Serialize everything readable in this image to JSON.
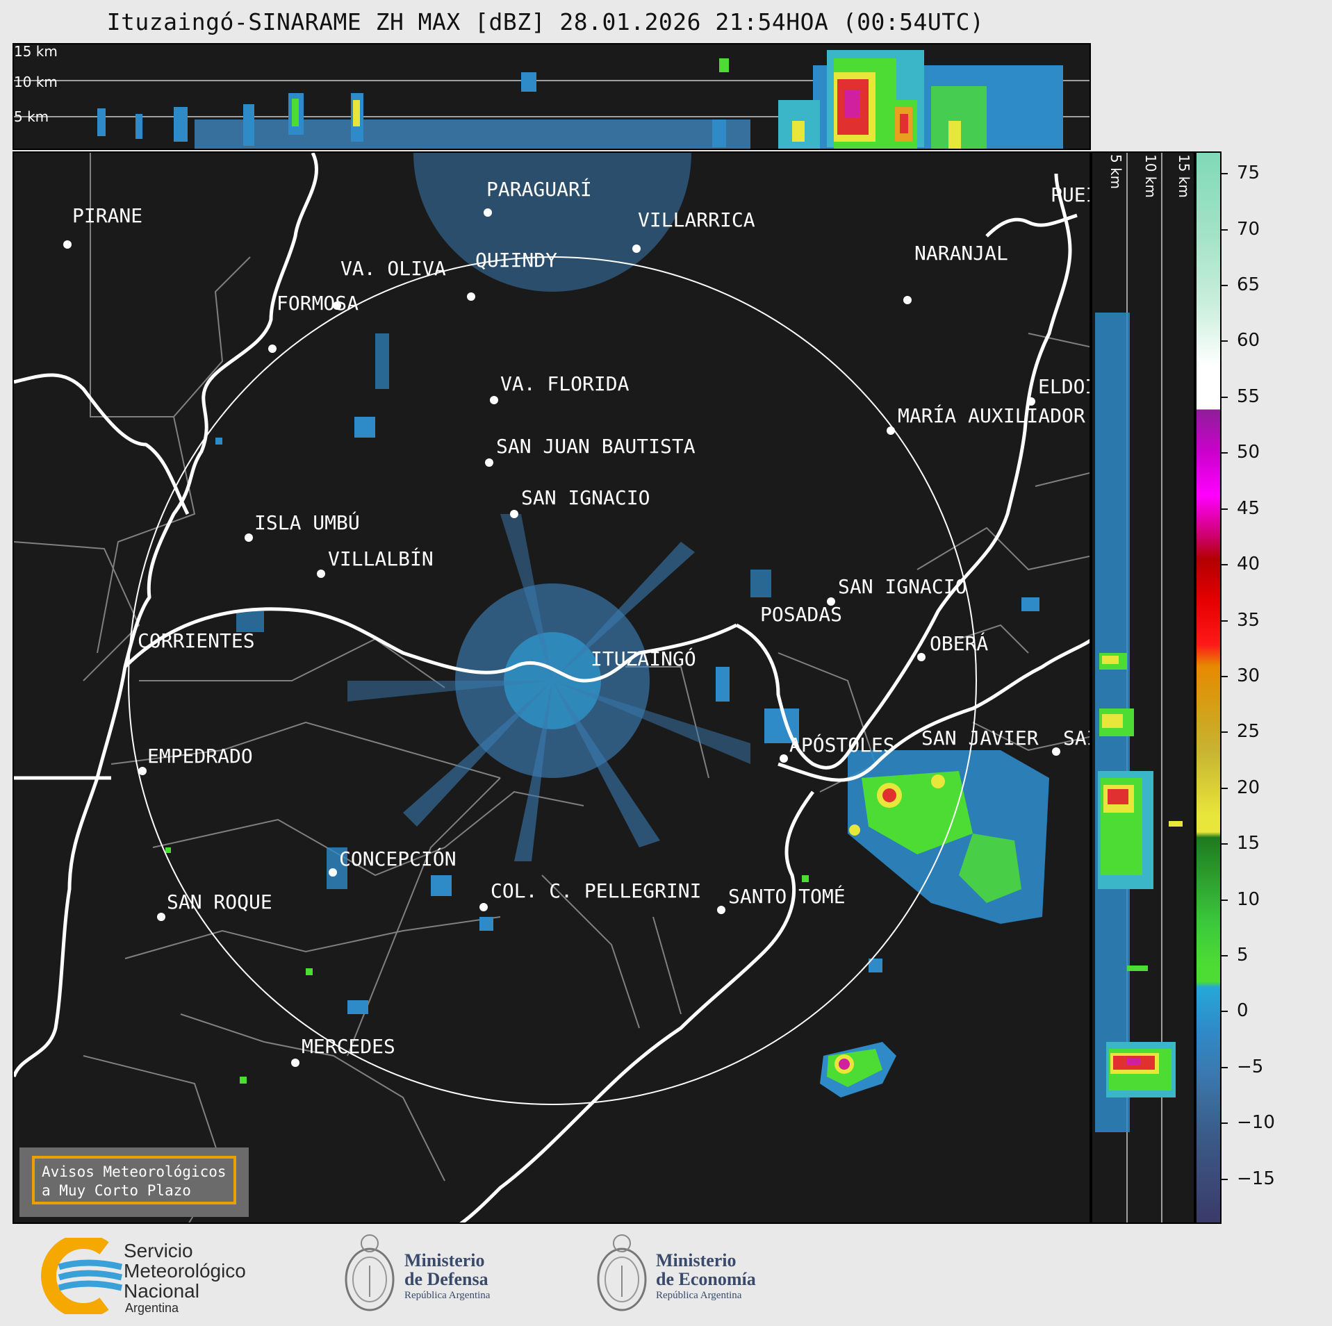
{
  "title": "Ituzaingó-SINARAME ZH MAX [dBZ] 28.01.2026 21:54HOA (00:54UTC)",
  "vertical_profile": {
    "altitude_labels": [
      "15 km",
      "10 km",
      "5 km"
    ]
  },
  "colorbar": {
    "ticks": [
      "75",
      "70",
      "65",
      "60",
      "55",
      "50",
      "45",
      "40",
      "35",
      "30",
      "25",
      "20",
      "15",
      "10",
      "5",
      "0",
      "−5",
      "−10",
      "−15"
    ],
    "min": -19,
    "max": 77
  },
  "cities": [
    {
      "name": "PARAGUARÍ",
      "id": "paraguari"
    },
    {
      "name": "VILLARRICA",
      "id": "villarrica"
    },
    {
      "name": "PUEI",
      "id": "puerto"
    },
    {
      "name": "PIRANE",
      "id": "pirane"
    },
    {
      "name": "VA. OLIVA",
      "id": "va-oliva"
    },
    {
      "name": "QUIINDY",
      "id": "quiindy"
    },
    {
      "name": "NARANJAL",
      "id": "naranjal"
    },
    {
      "name": "FORMOSA",
      "id": "formosa"
    },
    {
      "name": "VA. FLORIDA",
      "id": "va-florida"
    },
    {
      "name": "ELDOI",
      "id": "eldorado"
    },
    {
      "name": "MARÍA AUXILIADOR",
      "id": "maria-auxiliadora"
    },
    {
      "name": "SAN JUAN BAUTISTA",
      "id": "san-juan-bautista"
    },
    {
      "name": "SAN IGNACIO",
      "id": "san-ignacio-py"
    },
    {
      "name": "ISLA UMBÚ",
      "id": "isla-umbu"
    },
    {
      "name": "VILLALBÍN",
      "id": "villalbin"
    },
    {
      "name": "SAN IGNACIO",
      "id": "san-ignacio-ar"
    },
    {
      "name": "POSADAS",
      "id": "posadas"
    },
    {
      "name": "CORRIENTES",
      "id": "corrientes"
    },
    {
      "name": "ITUZAINGÓ",
      "id": "ituzaingo"
    },
    {
      "name": "OBERÁ",
      "id": "obera"
    },
    {
      "name": "APÓSTOLES",
      "id": "apostoles"
    },
    {
      "name": "SAN JAVIER",
      "id": "san-javier"
    },
    {
      "name": "SAI",
      "id": "san-vicente"
    },
    {
      "name": "EMPEDRADO",
      "id": "empedrado"
    },
    {
      "name": "CONCEPCIÓN",
      "id": "concepcion"
    },
    {
      "name": "COL. C. PELLEGRINI",
      "id": "col-pellegrini"
    },
    {
      "name": "SANTO TOMÉ",
      "id": "santo-tome"
    },
    {
      "name": "SAN ROQUE",
      "id": "san-roque"
    },
    {
      "name": "MERCEDES",
      "id": "mercedes"
    }
  ],
  "warning": {
    "line1": "Avisos Meteorológicos",
    "line2": "a Muy Corto Plazo"
  },
  "footer": {
    "smn": {
      "line1": "Servicio",
      "line2": "Meteorológico",
      "line3": "Nacional",
      "line4": "Argentina"
    },
    "defensa": {
      "line1": "Ministerio",
      "line2": "de Defensa",
      "line3": "República Argentina"
    },
    "economia": {
      "line1": "Ministerio",
      "line2": "de Economía",
      "line3": "República Argentina"
    }
  },
  "colors": {
    "background": "#1a1a1a",
    "range_ring": "#ffffff",
    "rivers": "#ffffff",
    "borders": "#808080",
    "warning_border": "#e8a100"
  }
}
